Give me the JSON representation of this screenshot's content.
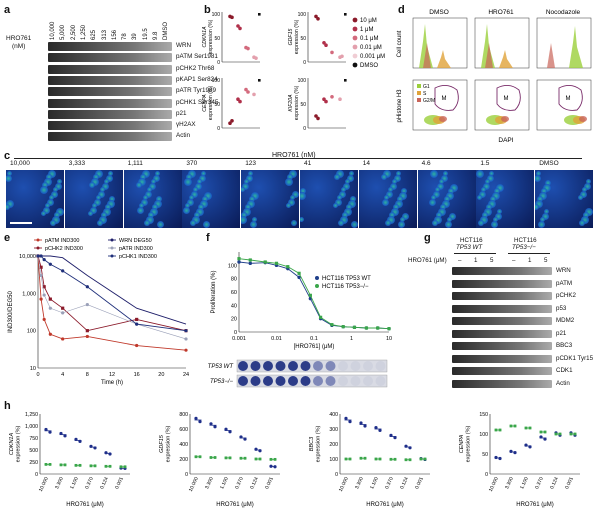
{
  "panels": {
    "a": {
      "letter": "a",
      "ylabel_line1": "HRO761",
      "ylabel_line2": "(nM)",
      "conc": [
        "10,000",
        "5,000",
        "2,500",
        "1,250",
        "625",
        "313",
        "156",
        "78",
        "39",
        "19.5",
        "9.8",
        "DMSO"
      ],
      "bands": [
        "WRN",
        "pATM Ser1981",
        "pCHK2 Thr68",
        "pKAP1 Ser824",
        "pATR Tyr1989",
        "pCHK1 Ser345",
        "p21",
        "γH2AX",
        "Actin"
      ]
    },
    "b": {
      "letter": "b",
      "genes": [
        "CDKN1A\nexpression (%)",
        "GDF15\nexpression (%)",
        "CENPA\nexpression (%)",
        "KIF20A\nexpression (%)"
      ],
      "legend": [
        "10 μM",
        "1 μM",
        "0.1 μM",
        "0.01 μM",
        "0.001 μM",
        "DMSO"
      ],
      "legend_colors": [
        "#8b1a2a",
        "#b0304a",
        "#d36a7d",
        "#e3a0ad",
        "#f0cdd4",
        "#111111"
      ],
      "ticks": [
        "0",
        "50",
        "100"
      ]
    },
    "c": {
      "letter": "c",
      "title": "HRO761 (nM)",
      "conc": [
        "10,000",
        "3,333",
        "1,111",
        "370",
        "123",
        "41",
        "14",
        "4.6",
        "1.5",
        "DMSO"
      ]
    },
    "d": {
      "letter": "d",
      "cols": [
        "DMSO",
        "HRO761",
        "Nocodazole"
      ],
      "ylabel_top": "Cell count",
      "ylabel_bottom": "pHistone H3",
      "xlabel": "DAPI",
      "legend": [
        "G1",
        "S",
        "G2/M"
      ],
      "legend_colors": [
        "#9bcf3b",
        "#e0a33a",
        "#c9655a"
      ],
      "gate_label": "M"
    },
    "e": {
      "letter": "e",
      "legend": [
        "pATM IND300",
        "pCHK2 IND300",
        "WRN DEG50",
        "pATR IND300",
        "pCHK1 IND300"
      ],
      "ylabel": "IND300/DEG50",
      "xlabel": "Time (h)",
      "yticks": [
        "10,000",
        "1,000",
        "100",
        "10"
      ],
      "xticks": [
        "0",
        "4",
        "8",
        "12",
        "16",
        "20",
        "24"
      ]
    },
    "f": {
      "letter": "f",
      "ylabel": "Proliferation (%)",
      "xlabel": "[HRO761] (μM)",
      "yticks": [
        "0",
        "20",
        "40",
        "60",
        "80",
        "100"
      ],
      "xticks": [
        "0.001",
        "0.01",
        "0.1",
        "1",
        "10"
      ],
      "legend": [
        "HCT116 TP53 WT",
        "HCT116 TP53−/−"
      ],
      "legend_colors": [
        "#1f3f8a",
        "#3aa64a"
      ],
      "plate_labels": [
        "TP53 WT",
        "TP53−/−"
      ]
    },
    "g": {
      "letter": "g",
      "head_wt": "HCT116\nTP53 WT",
      "head_ko": "HCT116\nTP53−/−",
      "dose_label": "HRO761 (μM)",
      "doses": [
        "–",
        "1",
        "5",
        "–",
        "1",
        "5"
      ],
      "bands": [
        "WRN",
        "pATM",
        "pCHK2",
        "p53",
        "MDM2",
        "p21",
        "BBC3",
        "pCDK1 Tyr15",
        "CDK1",
        "Actin"
      ]
    },
    "h": {
      "letter": "h",
      "genes": [
        "CDKN1A\nexpression (%)",
        "GDF15\nexpression (%)",
        "BBC3\nexpression (%)",
        "CENPA\nexpression (%)"
      ],
      "xlabel": "HRO761 (μM)",
      "xticks": [
        "10.000",
        "3.300",
        "1.100",
        "0.370",
        "0.124",
        "0.001"
      ],
      "yt1": [
        "0",
        "250",
        "500",
        "750",
        "1,000",
        "1,250"
      ],
      "yt2": [
        "0",
        "200",
        "400",
        "600",
        "800"
      ],
      "yt3": [
        "0",
        "100",
        "200",
        "300",
        "400"
      ],
      "yt4": [
        "0",
        "50",
        "100",
        "150"
      ]
    }
  },
  "chart_data": [
    {
      "type": "line",
      "panel": "e",
      "xlabel": "Time (h)",
      "ylabel": "IND300/DEG50",
      "log_y": true,
      "ylim": [
        10,
        10000
      ],
      "xlim": [
        0,
        24
      ],
      "series": [
        {
          "name": "pATM IND300",
          "x": [
            0,
            0.5,
            1,
            2,
            4,
            8,
            16,
            24
          ],
          "y": [
            10000,
            700,
            200,
            80,
            60,
            70,
            40,
            30
          ]
        },
        {
          "name": "pCHK2 IND300",
          "x": [
            0,
            0.5,
            1,
            2,
            4,
            8,
            16,
            24
          ],
          "y": [
            10000,
            5000,
            1500,
            700,
            400,
            100,
            200,
            100
          ]
        },
        {
          "name": "WRN DEG50",
          "x": [
            0,
            0.5,
            1,
            2,
            4,
            8,
            16,
            24
          ],
          "y": [
            10000,
            10000,
            10000,
            10000,
            9000,
            3000,
            400,
            150
          ]
        },
        {
          "name": "pATR IND300",
          "x": [
            0,
            0.5,
            1,
            2,
            4,
            8,
            16,
            24
          ],
          "y": [
            10000,
            3000,
            900,
            400,
            300,
            500,
            150,
            60
          ]
        },
        {
          "name": "pCHK1 IND300",
          "x": [
            0,
            0.5,
            1,
            2,
            4,
            8,
            16,
            24
          ],
          "y": [
            10000,
            10000,
            8000,
            6000,
            4000,
            1500,
            150,
            100
          ]
        }
      ]
    },
    {
      "type": "line",
      "panel": "f",
      "xlabel": "[HRO761] (μM)",
      "ylabel": "Proliferation (%)",
      "log_x": true,
      "ylim": [
        0,
        120
      ],
      "series": [
        {
          "name": "HCT116 TP53 WT",
          "x": [
            0.001,
            0.002,
            0.005,
            0.01,
            0.02,
            0.04,
            0.08,
            0.15,
            0.3,
            0.6,
            1.2,
            2.5,
            5,
            10
          ],
          "y": [
            105,
            103,
            104,
            100,
            95,
            82,
            50,
            20,
            10,
            8,
            7,
            6,
            6,
            5
          ]
        },
        {
          "name": "HCT116 TP53−/−",
          "x": [
            0.001,
            0.002,
            0.005,
            0.01,
            0.02,
            0.04,
            0.08,
            0.15,
            0.3,
            0.6,
            1.2,
            2.5,
            5,
            10
          ],
          "y": [
            110,
            108,
            105,
            103,
            98,
            88,
            55,
            22,
            11,
            8,
            7,
            6,
            6,
            5
          ]
        }
      ]
    }
  ]
}
